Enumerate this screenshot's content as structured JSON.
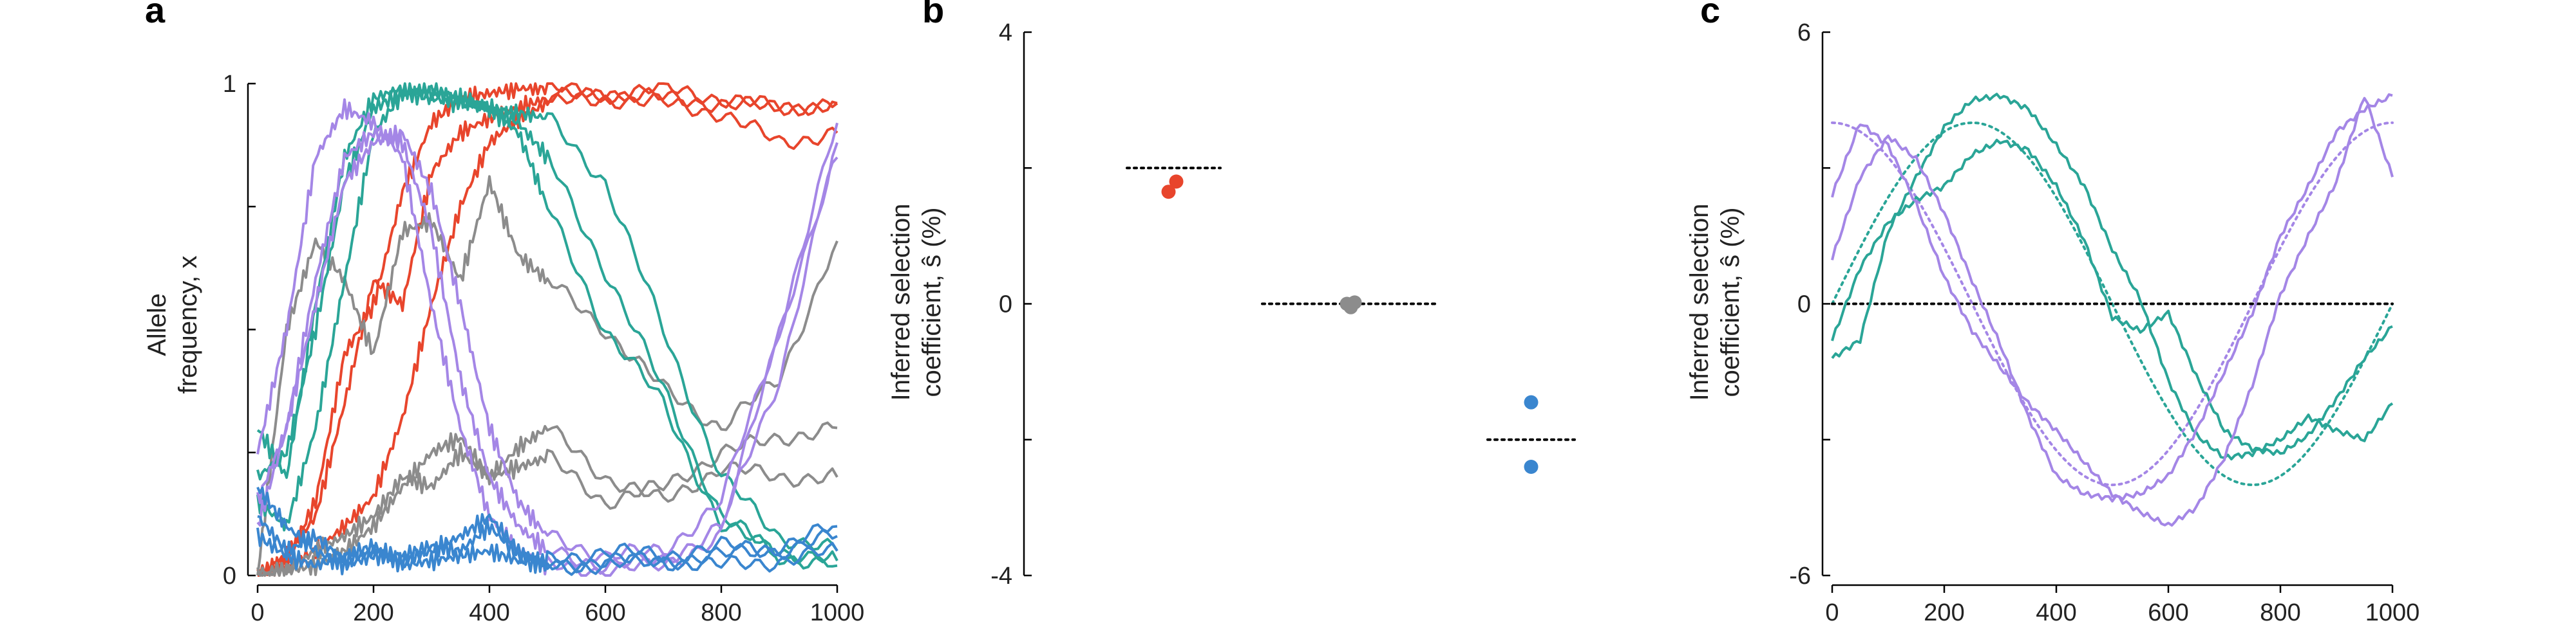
{
  "colors": {
    "red": "#e8452c",
    "gray": "#8c8c8c",
    "teal": "#2aa597",
    "purple": "#a486e6",
    "blue": "#3a86cf",
    "black": "#000000"
  },
  "chart_data": [
    {
      "panel": "a",
      "type": "line",
      "xlabel": "",
      "ylabel_lines": [
        "Allele",
        "frequency, x"
      ],
      "xlim": [
        0,
        1000
      ],
      "ylim": [
        0,
        1
      ],
      "xticks": [
        0,
        200,
        400,
        600,
        800,
        1000
      ],
      "yticks": [
        0,
        1
      ],
      "grid": false,
      "series": [
        {
          "color": "red",
          "x": [
            0,
            50,
            100,
            150,
            200,
            250,
            300,
            350,
            400,
            450,
            500,
            600,
            700,
            800,
            900,
            1000
          ],
          "y": [
            0,
            0.04,
            0.12,
            0.35,
            0.6,
            0.55,
            0.82,
            0.9,
            0.93,
            0.95,
            0.97,
            0.98,
            0.99,
            0.97,
            0.95,
            0.96
          ]
        },
        {
          "color": "red",
          "x": [
            0,
            50,
            100,
            150,
            200,
            250,
            300,
            350,
            400,
            450,
            500,
            600,
            700,
            800,
            900,
            1000
          ],
          "y": [
            0,
            0.02,
            0.05,
            0.1,
            0.16,
            0.32,
            0.55,
            0.75,
            0.88,
            0.93,
            0.96,
            0.97,
            0.96,
            0.94,
            0.88,
            0.9
          ]
        },
        {
          "color": "red",
          "x": [
            0,
            50,
            100,
            150,
            200,
            250,
            300,
            350,
            400,
            450,
            500,
            600,
            700,
            800,
            900,
            1000
          ],
          "y": [
            0,
            0.03,
            0.15,
            0.45,
            0.55,
            0.78,
            0.92,
            0.97,
            0.98,
            0.99,
            0.99,
            0.98,
            0.97,
            0.96,
            0.95,
            0.96
          ]
        },
        {
          "color": "gray",
          "x": [
            0,
            50,
            100,
            150,
            200,
            250,
            300,
            350,
            400,
            450,
            500,
            600,
            700,
            800,
            900,
            1000
          ],
          "y": [
            0,
            0.5,
            0.68,
            0.6,
            0.45,
            0.7,
            0.72,
            0.6,
            0.8,
            0.65,
            0.6,
            0.5,
            0.38,
            0.3,
            0.4,
            0.68
          ]
        },
        {
          "color": "gray",
          "x": [
            0,
            50,
            100,
            150,
            200,
            250,
            300,
            350,
            400,
            450,
            500,
            600,
            700,
            800,
            900,
            1000
          ],
          "y": [
            0,
            0.01,
            0.05,
            0.08,
            0.12,
            0.2,
            0.18,
            0.25,
            0.2,
            0.26,
            0.3,
            0.2,
            0.15,
            0.22,
            0.2,
            0.2
          ]
        },
        {
          "color": "gray",
          "x": [
            0,
            50,
            100,
            150,
            200,
            250,
            300,
            350,
            400,
            450,
            500,
            600,
            700,
            800,
            900,
            1000
          ],
          "y": [
            0,
            0.01,
            0.02,
            0.05,
            0.1,
            0.18,
            0.25,
            0.28,
            0.2,
            0.22,
            0.24,
            0.15,
            0.18,
            0.25,
            0.28,
            0.3
          ]
        },
        {
          "color": "teal",
          "x": [
            0,
            50,
            100,
            150,
            200,
            250,
            300,
            350,
            400,
            450,
            500,
            600,
            700,
            800,
            900,
            1000
          ],
          "y": [
            0.3,
            0.2,
            0.55,
            0.85,
            0.97,
            0.99,
            0.98,
            0.97,
            0.95,
            0.92,
            0.85,
            0.62,
            0.38,
            0.12,
            0.04,
            0.02
          ]
        },
        {
          "color": "teal",
          "x": [
            0,
            50,
            100,
            150,
            200,
            250,
            300,
            350,
            400,
            450,
            500,
            600,
            700,
            800,
            900,
            1000
          ],
          "y": [
            0.15,
            0.1,
            0.3,
            0.6,
            0.9,
            0.98,
            0.99,
            0.97,
            0.95,
            0.9,
            0.75,
            0.5,
            0.35,
            0.1,
            0.05,
            0.03
          ]
        },
        {
          "color": "teal",
          "x": [
            0,
            50,
            100,
            150,
            200,
            250,
            300,
            350,
            400,
            450,
            500,
            600,
            700,
            800,
            900,
            1000
          ],
          "y": [
            0.2,
            0.25,
            0.5,
            0.8,
            0.95,
            0.98,
            0.97,
            0.96,
            0.95,
            0.94,
            0.93,
            0.8,
            0.5,
            0.2,
            0.08,
            0.05
          ]
        },
        {
          "color": "purple",
          "x": [
            0,
            50,
            100,
            150,
            200,
            250,
            300,
            350,
            400,
            450,
            500,
            600,
            700,
            800,
            900,
            1000
          ],
          "y": [
            0.25,
            0.5,
            0.85,
            0.95,
            0.92,
            0.85,
            0.55,
            0.3,
            0.12,
            0.05,
            0.02,
            0.01,
            0.02,
            0.08,
            0.5,
            0.92
          ]
        },
        {
          "color": "purple",
          "x": [
            0,
            50,
            100,
            150,
            200,
            250,
            300,
            350,
            400,
            450,
            500,
            600,
            700,
            800,
            900,
            1000
          ],
          "y": [
            0.1,
            0.3,
            0.6,
            0.85,
            0.9,
            0.88,
            0.7,
            0.4,
            0.2,
            0.1,
            0.05,
            0.02,
            0.03,
            0.1,
            0.4,
            0.88
          ]
        },
        {
          "color": "purple",
          "x": [
            0,
            50,
            100,
            150,
            200,
            250,
            300,
            350,
            400,
            450,
            500,
            600,
            700,
            800,
            900,
            1000
          ],
          "y": [
            0.15,
            0.3,
            0.55,
            0.8,
            0.88,
            0.9,
            0.78,
            0.55,
            0.3,
            0.15,
            0.08,
            0.04,
            0.05,
            0.15,
            0.5,
            0.85
          ]
        },
        {
          "color": "blue",
          "x": [
            0,
            50,
            100,
            150,
            200,
            250,
            300,
            350,
            400,
            450,
            500,
            600,
            700,
            800,
            900,
            1000
          ],
          "y": [
            0.12,
            0.05,
            0.08,
            0.03,
            0.05,
            0.04,
            0.06,
            0.05,
            0.1,
            0.04,
            0.03,
            0.05,
            0.04,
            0.06,
            0.05,
            0.08
          ]
        },
        {
          "color": "blue",
          "x": [
            0,
            50,
            100,
            150,
            200,
            250,
            300,
            350,
            400,
            450,
            500,
            600,
            700,
            800,
            900,
            1000
          ],
          "y": [
            0.18,
            0.1,
            0.05,
            0.02,
            0.04,
            0.03,
            0.05,
            0.08,
            0.12,
            0.05,
            0.02,
            0.03,
            0.03,
            0.04,
            0.06,
            0.1
          ]
        },
        {
          "color": "blue",
          "x": [
            0,
            50,
            100,
            150,
            200,
            250,
            300,
            350,
            400,
            450,
            500,
            600,
            700,
            800,
            900,
            1000
          ],
          "y": [
            0.08,
            0.04,
            0.02,
            0.04,
            0.06,
            0.02,
            0.03,
            0.04,
            0.05,
            0.03,
            0.02,
            0.02,
            0.03,
            0.02,
            0.03,
            0.05
          ]
        }
      ]
    },
    {
      "panel": "b",
      "type": "scatter",
      "ylabel_lines": [
        "Inferred selection",
        "coefficient, ŝ (%)"
      ],
      "ylim": [
        -4,
        4
      ],
      "yticks": [
        -4,
        0,
        4
      ],
      "grid": false,
      "groups": [
        {
          "color": "red",
          "true_value": 2,
          "points": [
            1.8,
            1.65
          ]
        },
        {
          "color": "gray",
          "true_value": 0,
          "points": [
            0.0,
            -0.05,
            0.02
          ]
        },
        {
          "color": "blue",
          "true_value": -2,
          "points": [
            -1.45,
            -2.4
          ]
        }
      ]
    },
    {
      "panel": "c",
      "type": "line",
      "ylabel_lines": [
        "Inferred selection",
        "coefficient, ŝ (%)"
      ],
      "xlim": [
        0,
        1000
      ],
      "ylim": [
        -6,
        6
      ],
      "xticks": [
        0,
        200,
        400,
        600,
        800,
        1000
      ],
      "yticks": [
        -6,
        0,
        6
      ],
      "grid": false,
      "true_curves": [
        {
          "color": "teal",
          "amplitude": 4,
          "period": 1000,
          "phase": "sin"
        },
        {
          "color": "purple",
          "amplitude": 4,
          "period": 1000,
          "phase": "cos"
        },
        {
          "color": "black",
          "amplitude": 0,
          "period": 1000,
          "phase": "zero"
        }
      ],
      "series": [
        {
          "color": "teal",
          "x": [
            0,
            50,
            100,
            150,
            200,
            250,
            300,
            350,
            400,
            450,
            500,
            550,
            600,
            650,
            700,
            750,
            800,
            850,
            900,
            950,
            1000
          ],
          "y": [
            -1.2,
            -0.8,
            1.6,
            2.8,
            3.9,
            4.5,
            4.6,
            4.3,
            3.5,
            2.6,
            1.2,
            0.1,
            -1.7,
            -2.9,
            -3.4,
            -3.3,
            -3.0,
            -2.5,
            -2.8,
            -3.0,
            -2.2
          ]
        },
        {
          "color": "teal",
          "x": [
            0,
            50,
            100,
            150,
            200,
            250,
            300,
            350,
            400,
            450,
            500,
            550,
            600,
            650,
            700,
            750,
            800,
            850,
            900,
            950,
            1000
          ],
          "y": [
            -0.8,
            0.8,
            1.8,
            2.3,
            2.6,
            3.3,
            3.6,
            3.4,
            2.6,
            1.4,
            -0.3,
            -0.6,
            -0.2,
            -1.6,
            -2.8,
            -3.2,
            -3.3,
            -2.9,
            -2.1,
            -1.2,
            -0.5
          ]
        },
        {
          "color": "purple",
          "x": [
            0,
            50,
            100,
            150,
            200,
            250,
            300,
            350,
            400,
            450,
            500,
            550,
            600,
            650,
            700,
            750,
            800,
            850,
            900,
            950,
            1000
          ],
          "y": [
            1.0,
            2.8,
            3.7,
            3.2,
            2.0,
            0.5,
            -0.9,
            -2.5,
            -3.8,
            -4.2,
            -4.3,
            -4.2,
            -3.8,
            -2.8,
            -1.5,
            -0.2,
            1.5,
            2.6,
            3.8,
            4.3,
            4.6
          ]
        },
        {
          "color": "purple",
          "x": [
            0,
            50,
            100,
            150,
            200,
            250,
            300,
            350,
            400,
            450,
            500,
            550,
            600,
            650,
            700,
            750,
            800,
            850,
            900,
            950,
            1000
          ],
          "y": [
            2.4,
            4.0,
            3.5,
            2.2,
            0.6,
            -0.6,
            -1.4,
            -2.2,
            -2.8,
            -3.5,
            -4.2,
            -4.6,
            -4.9,
            -4.5,
            -3.4,
            -1.8,
            0.2,
            1.5,
            2.7,
            4.6,
            2.8
          ]
        }
      ]
    }
  ],
  "panels": {
    "a": {
      "label": "a"
    },
    "b": {
      "label": "b"
    },
    "c": {
      "label": "c"
    }
  }
}
